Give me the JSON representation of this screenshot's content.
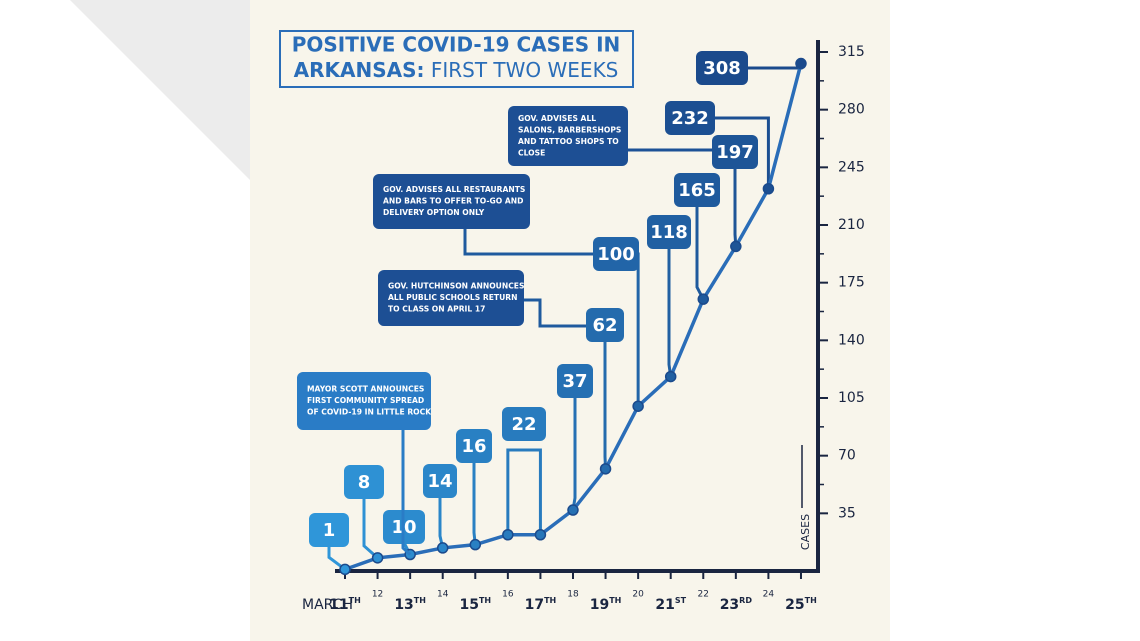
{
  "chart_data": {
    "type": "line",
    "title": [
      "POSITIVE COVID-19 CASES IN",
      "ARKANSAS: FIRST TWO WEEKS"
    ],
    "x_label": "MARCH",
    "y_label": "CASES",
    "categories": [
      "11TH",
      "12",
      "13TH",
      "14",
      "15TH",
      "16",
      "17TH",
      "18",
      "19TH",
      "20",
      "21ST",
      "22",
      "23RD",
      "24",
      "25TH"
    ],
    "values": [
      1,
      8,
      10,
      14,
      16,
      22,
      22,
      37,
      62,
      100,
      118,
      165,
      197,
      232,
      308
    ],
    "color": "#2a6db8",
    "label_colors": [
      "#2f96d9",
      "#1b4a8c"
    ],
    "axis_color": "#1a2540",
    "ylim": [
      0,
      315
    ],
    "yticks": [
      35,
      70,
      105,
      140,
      175,
      210,
      245,
      280,
      315
    ],
    "annotations": [
      {
        "lines": [
          "MAYOR SCOTT ANNOUNCES",
          "FIRST COMMUNITY SPREAD",
          "OF COVID-19 IN LITTLE ROCK"
        ]
      },
      {
        "lines": [
          "GOV. HUTCHINSON ANNOUNCES",
          "ALL PUBLIC SCHOOLS RETURN",
          "TO CLASS ON APRIL 17"
        ]
      },
      {
        "lines": [
          "GOV. ADVISES ALL RESTAURANTS",
          "AND BARS TO OFFER TO-GO AND",
          "DELIVERY OPTION ONLY"
        ]
      },
      {
        "lines": [
          "GOV. ADVISES ALL",
          "SALONS, BARBERSHOPS",
          "AND TATTOO SHOPS TO",
          "CLOSE"
        ]
      }
    ]
  }
}
